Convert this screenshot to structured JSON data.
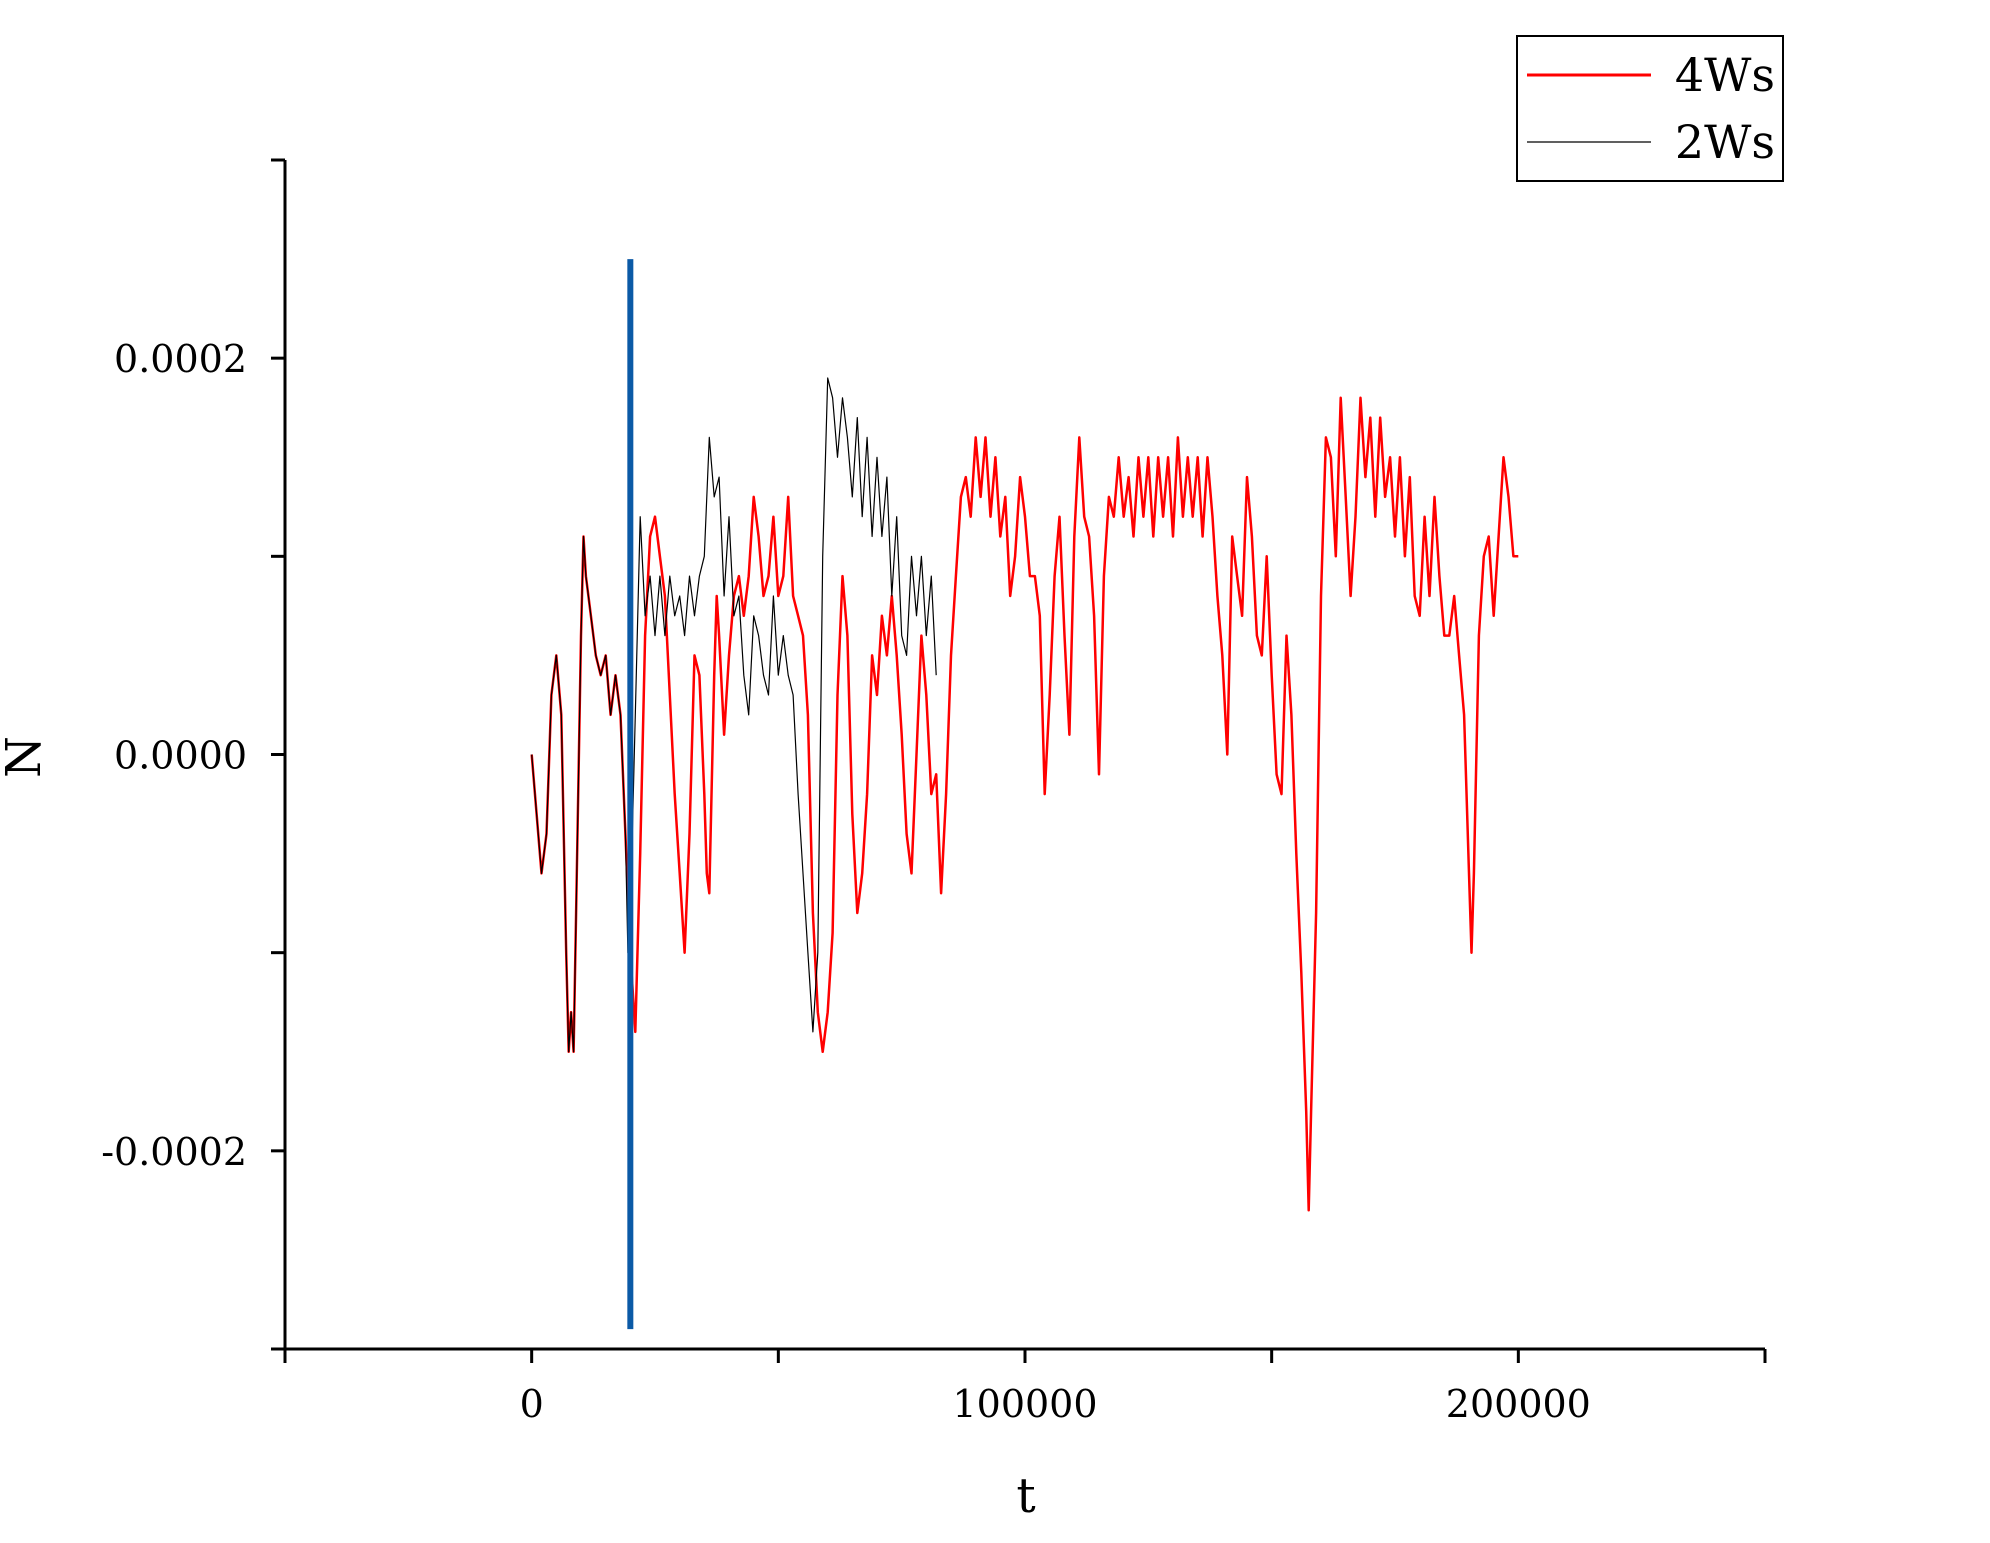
{
  "chart_data": {
    "type": "line",
    "xlabel": "t",
    "ylabel": "N",
    "xlim": [
      -50000,
      250000
    ],
    "ylim": [
      -0.0003,
      0.0003
    ],
    "x_ticks": [
      0,
      100000,
      200000
    ],
    "x_tick_labels": [
      "0",
      "100000",
      "200000"
    ],
    "x_minor_ticks": [
      -50000,
      50000,
      150000,
      250000
    ],
    "y_ticks": [
      -0.0002,
      0.0,
      0.0002
    ],
    "y_tick_labels": [
      "-0.0002",
      "0.0000",
      "0.0002"
    ],
    "y_minor_ticks": [
      -0.0003,
      -0.0001,
      0.0001,
      0.0003
    ],
    "grid": false,
    "legend_position": "top-right",
    "series": [
      {
        "name": "4Ws",
        "color": "#ff0000",
        "points": [
          [
            0,
            0
          ],
          [
            1000,
            -3e-05
          ],
          [
            2000,
            -6e-05
          ],
          [
            3000,
            -4e-05
          ],
          [
            4000,
            3e-05
          ],
          [
            5000,
            5e-05
          ],
          [
            6000,
            2e-05
          ],
          [
            7000,
            -0.0001
          ],
          [
            7500,
            -0.00015
          ],
          [
            8000,
            -0.00013
          ],
          [
            8500,
            -0.00015
          ],
          [
            9000,
            -8e-05
          ],
          [
            10000,
            6e-05
          ],
          [
            10500,
            0.00011
          ],
          [
            11000,
            9e-05
          ],
          [
            12000,
            7e-05
          ],
          [
            13000,
            5e-05
          ],
          [
            14000,
            4e-05
          ],
          [
            15000,
            5e-05
          ],
          [
            16000,
            2e-05
          ],
          [
            17000,
            4e-05
          ],
          [
            18000,
            2e-05
          ],
          [
            19000,
            -4e-05
          ],
          [
            20000,
            -0.0001
          ],
          [
            21000,
            -0.00014
          ],
          [
            22000,
            -5e-05
          ],
          [
            23000,
            6e-05
          ],
          [
            24000,
            0.00011
          ],
          [
            25000,
            0.00012
          ],
          [
            26000,
            0.0001
          ],
          [
            27000,
            8e-05
          ],
          [
            28000,
            3e-05
          ],
          [
            29000,
            -2e-05
          ],
          [
            30000,
            -6e-05
          ],
          [
            31000,
            -0.0001
          ],
          [
            32000,
            -4e-05
          ],
          [
            33000,
            5e-05
          ],
          [
            34000,
            4e-05
          ],
          [
            35000,
            -2e-05
          ],
          [
            35500,
            -6e-05
          ],
          [
            36000,
            -7e-05
          ],
          [
            37000,
            4e-05
          ],
          [
            37500,
            8e-05
          ],
          [
            38000,
            6e-05
          ],
          [
            39000,
            1e-05
          ],
          [
            40000,
            5e-05
          ],
          [
            41000,
            8e-05
          ],
          [
            42000,
            9e-05
          ],
          [
            43000,
            7e-05
          ],
          [
            44000,
            9e-05
          ],
          [
            45000,
            0.00013
          ],
          [
            46000,
            0.00011
          ],
          [
            47000,
            8e-05
          ],
          [
            48000,
            9e-05
          ],
          [
            49000,
            0.00012
          ],
          [
            50000,
            8e-05
          ],
          [
            51000,
            9e-05
          ],
          [
            52000,
            0.00013
          ],
          [
            53000,
            8e-05
          ],
          [
            54000,
            7e-05
          ],
          [
            55000,
            6e-05
          ],
          [
            56000,
            2e-05
          ],
          [
            57000,
            -8e-05
          ],
          [
            58000,
            -0.00013
          ],
          [
            59000,
            -0.00015
          ],
          [
            60000,
            -0.00013
          ],
          [
            61000,
            -9e-05
          ],
          [
            62000,
            3e-05
          ],
          [
            63000,
            9e-05
          ],
          [
            64000,
            6e-05
          ],
          [
            65000,
            -3e-05
          ],
          [
            66000,
            -8e-05
          ],
          [
            67000,
            -6e-05
          ],
          [
            68000,
            -2e-05
          ],
          [
            69000,
            5e-05
          ],
          [
            70000,
            3e-05
          ],
          [
            71000,
            7e-05
          ],
          [
            72000,
            5e-05
          ],
          [
            73000,
            8e-05
          ],
          [
            74000,
            5e-05
          ],
          [
            75000,
            1e-05
          ],
          [
            76000,
            -4e-05
          ],
          [
            77000,
            -6e-05
          ],
          [
            78000,
            0.0
          ],
          [
            79000,
            6e-05
          ],
          [
            80000,
            3e-05
          ],
          [
            81000,
            -2e-05
          ],
          [
            82000,
            -1e-05
          ],
          [
            83000,
            -7e-05
          ],
          [
            84000,
            -2e-05
          ],
          [
            85000,
            5e-05
          ],
          [
            86000,
            9e-05
          ],
          [
            87000,
            0.00013
          ],
          [
            88000,
            0.00014
          ],
          [
            89000,
            0.00012
          ],
          [
            90000,
            0.00016
          ],
          [
            91000,
            0.00013
          ],
          [
            92000,
            0.00016
          ],
          [
            93000,
            0.00012
          ],
          [
            94000,
            0.00015
          ],
          [
            95000,
            0.00011
          ],
          [
            96000,
            0.00013
          ],
          [
            97000,
            8e-05
          ],
          [
            98000,
            0.0001
          ],
          [
            99000,
            0.00014
          ],
          [
            100000,
            0.00012
          ],
          [
            101000,
            9e-05
          ],
          [
            102000,
            9e-05
          ],
          [
            103000,
            7e-05
          ],
          [
            104000,
            -2e-05
          ],
          [
            105000,
            3e-05
          ],
          [
            106000,
            9e-05
          ],
          [
            107000,
            0.00012
          ],
          [
            108000,
            6e-05
          ],
          [
            109000,
            1e-05
          ],
          [
            110000,
            0.00011
          ],
          [
            111000,
            0.00016
          ],
          [
            112000,
            0.00012
          ],
          [
            113000,
            0.00011
          ],
          [
            114000,
            7e-05
          ],
          [
            115000,
            -1e-05
          ],
          [
            116000,
            9e-05
          ],
          [
            117000,
            0.00013
          ],
          [
            118000,
            0.00012
          ],
          [
            119000,
            0.00015
          ],
          [
            120000,
            0.00012
          ],
          [
            121000,
            0.00014
          ],
          [
            122000,
            0.00011
          ],
          [
            123000,
            0.00015
          ],
          [
            124000,
            0.00012
          ],
          [
            125000,
            0.00015
          ],
          [
            126000,
            0.00011
          ],
          [
            127000,
            0.00015
          ],
          [
            128000,
            0.00012
          ],
          [
            129000,
            0.00015
          ],
          [
            130000,
            0.00011
          ],
          [
            131000,
            0.00016
          ],
          [
            132000,
            0.00012
          ],
          [
            133000,
            0.00015
          ],
          [
            134000,
            0.00012
          ],
          [
            135000,
            0.00015
          ],
          [
            136000,
            0.00011
          ],
          [
            137000,
            0.00015
          ],
          [
            138000,
            0.00012
          ],
          [
            139000,
            8e-05
          ],
          [
            140000,
            5e-05
          ],
          [
            141000,
            0.0
          ],
          [
            142000,
            0.00011
          ],
          [
            143000,
            9e-05
          ],
          [
            144000,
            7e-05
          ],
          [
            145000,
            0.00014
          ],
          [
            146000,
            0.00011
          ],
          [
            147000,
            6e-05
          ],
          [
            148000,
            5e-05
          ],
          [
            149000,
            0.0001
          ],
          [
            150000,
            4e-05
          ],
          [
            151000,
            -1e-05
          ],
          [
            152000,
            -2e-05
          ],
          [
            153000,
            6e-05
          ],
          [
            154000,
            2e-05
          ],
          [
            155000,
            -5e-05
          ],
          [
            156000,
            -0.00011
          ],
          [
            157000,
            -0.00018
          ],
          [
            157500,
            -0.00023
          ],
          [
            158000,
            -0.00018
          ],
          [
            159000,
            -8e-05
          ],
          [
            160000,
            8e-05
          ],
          [
            161000,
            0.00016
          ],
          [
            162000,
            0.00015
          ],
          [
            163000,
            0.0001
          ],
          [
            164000,
            0.00018
          ],
          [
            165000,
            0.00013
          ],
          [
            166000,
            8e-05
          ],
          [
            167000,
            0.00012
          ],
          [
            168000,
            0.00018
          ],
          [
            169000,
            0.00014
          ],
          [
            170000,
            0.00017
          ],
          [
            171000,
            0.00012
          ],
          [
            172000,
            0.00017
          ],
          [
            173000,
            0.00013
          ],
          [
            174000,
            0.00015
          ],
          [
            175000,
            0.00011
          ],
          [
            176000,
            0.00015
          ],
          [
            177000,
            0.0001
          ],
          [
            178000,
            0.00014
          ],
          [
            179000,
            8e-05
          ],
          [
            180000,
            7e-05
          ],
          [
            181000,
            0.00012
          ],
          [
            182000,
            8e-05
          ],
          [
            183000,
            0.00013
          ],
          [
            184000,
            9e-05
          ],
          [
            185000,
            6e-05
          ],
          [
            186000,
            6e-05
          ],
          [
            187000,
            8e-05
          ],
          [
            188000,
            5e-05
          ],
          [
            189000,
            2e-05
          ],
          [
            190000,
            -6e-05
          ],
          [
            190500,
            -0.0001
          ],
          [
            191000,
            -6e-05
          ],
          [
            192000,
            6e-05
          ],
          [
            193000,
            0.0001
          ],
          [
            194000,
            0.00011
          ],
          [
            195000,
            7e-05
          ],
          [
            196000,
            0.00011
          ],
          [
            197000,
            0.00015
          ],
          [
            198000,
            0.00013
          ],
          [
            199000,
            0.0001
          ],
          [
            200000,
            0.0001
          ]
        ]
      },
      {
        "name": "2Ws",
        "color": "#000000",
        "points": [
          [
            0,
            0
          ],
          [
            1000,
            -3e-05
          ],
          [
            2000,
            -6e-05
          ],
          [
            3000,
            -4e-05
          ],
          [
            4000,
            3e-05
          ],
          [
            5000,
            5e-05
          ],
          [
            6000,
            2e-05
          ],
          [
            7000,
            -0.0001
          ],
          [
            7500,
            -0.00015
          ],
          [
            8000,
            -0.00013
          ],
          [
            8500,
            -0.00015
          ],
          [
            9000,
            -8e-05
          ],
          [
            10000,
            6e-05
          ],
          [
            10500,
            0.00011
          ],
          [
            11000,
            9e-05
          ],
          [
            12000,
            7e-05
          ],
          [
            13000,
            5e-05
          ],
          [
            14000,
            4e-05
          ],
          [
            15000,
            5e-05
          ],
          [
            16000,
            2e-05
          ],
          [
            17000,
            4e-05
          ],
          [
            18000,
            2e-05
          ],
          [
            19000,
            -4e-05
          ],
          [
            19500,
            -0.0001
          ],
          [
            20000,
            -8e-05
          ],
          [
            21000,
            2e-05
          ],
          [
            22000,
            0.00012
          ],
          [
            23000,
            7e-05
          ],
          [
            24000,
            9e-05
          ],
          [
            25000,
            6e-05
          ],
          [
            26000,
            9e-05
          ],
          [
            27000,
            6e-05
          ],
          [
            28000,
            9e-05
          ],
          [
            29000,
            7e-05
          ],
          [
            30000,
            8e-05
          ],
          [
            31000,
            6e-05
          ],
          [
            32000,
            9e-05
          ],
          [
            33000,
            7e-05
          ],
          [
            34000,
            9e-05
          ],
          [
            35000,
            0.0001
          ],
          [
            36000,
            0.00016
          ],
          [
            37000,
            0.00013
          ],
          [
            38000,
            0.00014
          ],
          [
            39000,
            8e-05
          ],
          [
            40000,
            0.00012
          ],
          [
            41000,
            7e-05
          ],
          [
            42000,
            8e-05
          ],
          [
            43000,
            4e-05
          ],
          [
            44000,
            2e-05
          ],
          [
            45000,
            7e-05
          ],
          [
            46000,
            6e-05
          ],
          [
            47000,
            4e-05
          ],
          [
            48000,
            3e-05
          ],
          [
            49000,
            8e-05
          ],
          [
            50000,
            4e-05
          ],
          [
            51000,
            6e-05
          ],
          [
            52000,
            4e-05
          ],
          [
            53000,
            3e-05
          ],
          [
            54000,
            -2e-05
          ],
          [
            55000,
            -6e-05
          ],
          [
            56000,
            -0.0001
          ],
          [
            57000,
            -0.00014
          ],
          [
            58000,
            -0.0001
          ],
          [
            59000,
            0.0001
          ],
          [
            60000,
            0.00019
          ],
          [
            61000,
            0.00018
          ],
          [
            62000,
            0.00015
          ],
          [
            63000,
            0.00018
          ],
          [
            64000,
            0.00016
          ],
          [
            65000,
            0.00013
          ],
          [
            66000,
            0.00017
          ],
          [
            67000,
            0.00012
          ],
          [
            68000,
            0.00016
          ],
          [
            69000,
            0.00011
          ],
          [
            70000,
            0.00015
          ],
          [
            71000,
            0.00011
          ],
          [
            72000,
            0.00014
          ],
          [
            73000,
            8e-05
          ],
          [
            74000,
            0.00012
          ],
          [
            75000,
            6e-05
          ],
          [
            76000,
            5e-05
          ],
          [
            77000,
            0.0001
          ],
          [
            78000,
            7e-05
          ],
          [
            79000,
            0.0001
          ],
          [
            80000,
            6e-05
          ],
          [
            81000,
            9e-05
          ],
          [
            82000,
            4e-05
          ]
        ]
      }
    ],
    "annotations": [
      {
        "type": "vertical_line",
        "x": 20000,
        "y_range": [
          -0.00029,
          0.00025
        ],
        "color": "#0b5aa6"
      }
    ]
  }
}
